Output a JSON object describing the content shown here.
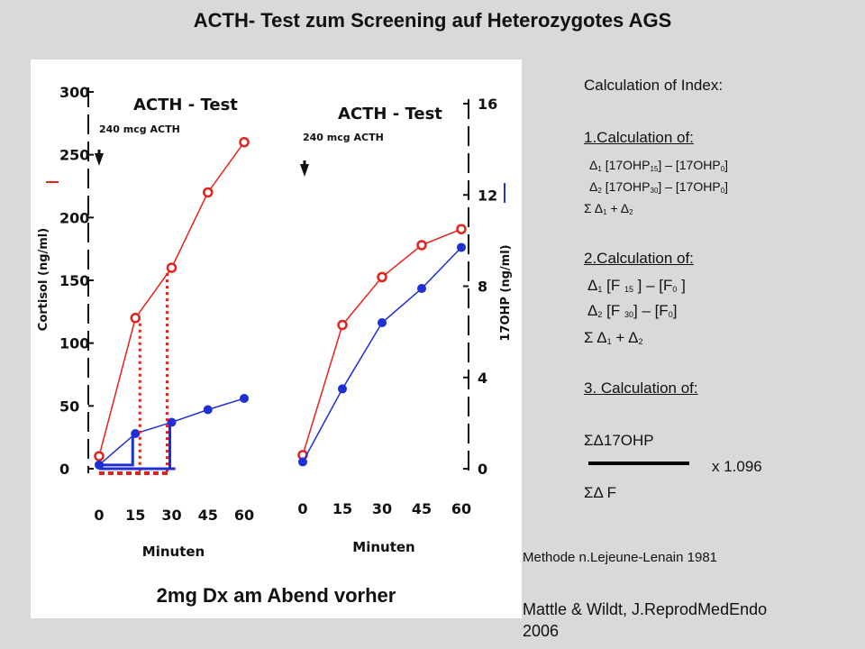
{
  "title": "ACTH- Test zum Screening auf Heterozygotes AGS",
  "footer_note": "2mg Dx am Abend vorher",
  "method": "Methode n.Lejeune-Lenain 1981",
  "reference_line1": "Mattle & Wildt, J.ReprodMedEndo",
  "reference_line2": "2006",
  "calculation": {
    "header": "Calculation of Index:",
    "step1": "1.Calculation of:",
    "step1_delta1": [
      "Δ",
      "1",
      "  [17OHP",
      "15",
      "] – [17OHP",
      "0",
      "]"
    ],
    "step1_delta2": [
      "Δ",
      "2",
      "  [17OHP",
      "30",
      "] – [17OHP",
      "0",
      "]"
    ],
    "step1_sum": [
      "Σ  Δ",
      "1",
      " + Δ",
      "2"
    ],
    "step2": "2.Calculation of:",
    "step2_delta1": [
      "Δ",
      "1",
      "  [F ",
      "15",
      " ] – [F",
      "0",
      " ]"
    ],
    "step2_delta2": [
      "Δ",
      "2",
      "  [F  ",
      "30",
      "] – [F",
      "0",
      "]"
    ],
    "step2_sum": [
      "Σ  Δ",
      "1",
      " + Δ",
      "2"
    ],
    "step3": "3. Calculation of:",
    "numerator": "ΣΔ17OHP",
    "factor": "x 1.096",
    "denominator": "ΣΔ F"
  },
  "chart_data": [
    {
      "type": "line",
      "title": "ACTH  - Test",
      "subtitle": "240 mcg ACTH",
      "xlabel": "Minuten",
      "ylabel": "Cortisol (ng/ml)",
      "x": [
        0,
        15,
        30,
        45,
        60
      ],
      "xticks": [
        "0",
        "15",
        "30",
        "45",
        "60"
      ],
      "yticks": [
        "0",
        "50",
        "100",
        "150",
        "200",
        "250",
        "300"
      ],
      "ylim": [
        0,
        300
      ],
      "colors": {
        "red": "#e8201a",
        "blue": "#1f2fd6"
      },
      "series": [
        {
          "values": [
            10,
            120,
            160,
            220,
            260
          ],
          "color": "#e8201a",
          "marker": "open-circle"
        },
        {
          "values": [
            3,
            28,
            37,
            47,
            56
          ],
          "color": "#1f2fd6",
          "marker": "filled-circle"
        }
      ]
    },
    {
      "type": "line",
      "title": "ACTH  - Test",
      "subtitle": "240 mcg ACTH",
      "xlabel": "Minuten",
      "ylabel": "17OHP (ng/ml)",
      "x": [
        0,
        15,
        30,
        45,
        60
      ],
      "xticks": [
        "0",
        "15",
        "30",
        "45",
        "60"
      ],
      "yticks": [
        "0",
        "4",
        "8",
        "12",
        "16"
      ],
      "ylim": [
        0,
        16
      ],
      "colors": {
        "red": "#e8201a",
        "blue": "#1f2fd6"
      },
      "series": [
        {
          "values": [
            0.6,
            6.3,
            8.4,
            9.8,
            10.5
          ],
          "color": "#e8201a",
          "marker": "open-circle"
        },
        {
          "values": [
            0.3,
            3.5,
            6.4,
            7.9,
            9.7
          ],
          "color": "#1f2fd6",
          "marker": "filled-circle"
        }
      ]
    }
  ]
}
